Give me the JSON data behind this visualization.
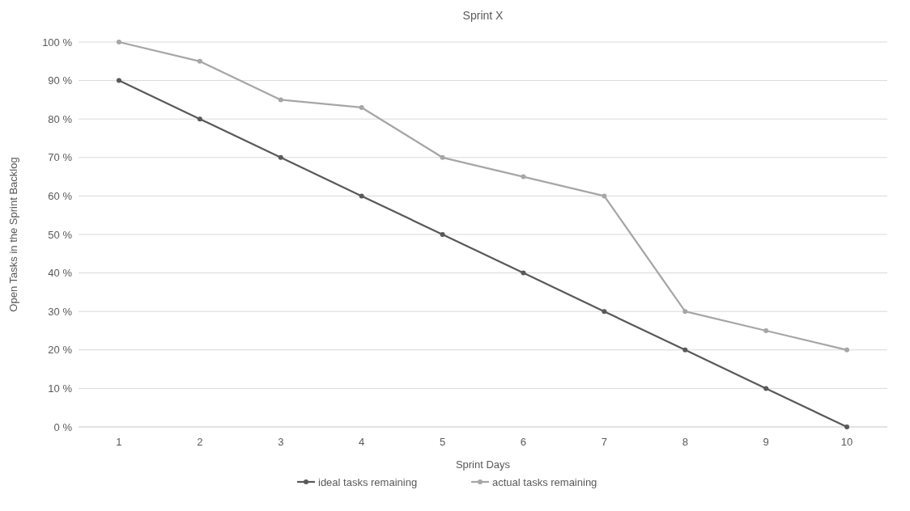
{
  "chart_data": {
    "type": "line",
    "title": "Sprint X",
    "xlabel": "Sprint Days",
    "ylabel": "Open Tasks in the Sprint Backlog",
    "categories": [
      "1",
      "2",
      "3",
      "4",
      "5",
      "6",
      "7",
      "8",
      "9",
      "10"
    ],
    "series": [
      {
        "name": "ideal tasks remaining",
        "color": "#595959",
        "values": [
          90,
          80,
          70,
          60,
          50,
          40,
          30,
          20,
          10,
          0
        ]
      },
      {
        "name": "actual tasks remaining",
        "color": "#a6a6a6",
        "values": [
          100,
          95,
          85,
          83,
          70,
          65,
          60,
          30,
          25,
          20
        ]
      }
    ],
    "ylim": [
      0,
      100
    ],
    "yticks": [
      {
        "value": 0,
        "label": "0 %"
      },
      {
        "value": 10,
        "label": "10 %"
      },
      {
        "value": 20,
        "label": "20 %"
      },
      {
        "value": 30,
        "label": "30 %"
      },
      {
        "value": 40,
        "label": "40 %"
      },
      {
        "value": 50,
        "label": "50 %"
      },
      {
        "value": 60,
        "label": "60 %"
      },
      {
        "value": 70,
        "label": "70 %"
      },
      {
        "value": 80,
        "label": "80 %"
      },
      {
        "value": 90,
        "label": "90 %"
      },
      {
        "value": 100,
        "label": "100 %"
      }
    ],
    "grid": "y",
    "legend": "bottom",
    "marker": "circle",
    "line_style": "solid"
  }
}
